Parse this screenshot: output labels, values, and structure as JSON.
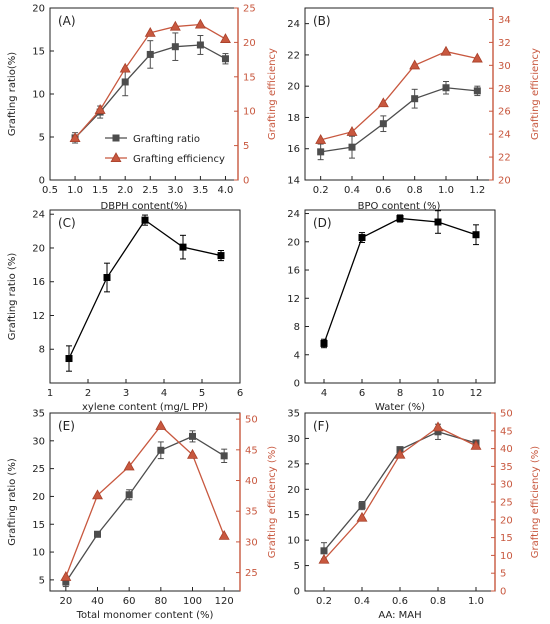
{
  "colors": {
    "axis": "#222222",
    "primary": "#4d4d4d",
    "secondary": "#c8583f",
    "black": "#000000"
  },
  "chart_data": [
    {
      "panel": "(A)",
      "type": "line",
      "xlabel": "DBPH content(%)",
      "ylabel": "Grafting ratio(%)",
      "ylabel_right": "Grafting efficiency",
      "xlim": [
        0.5,
        4.25
      ],
      "xticks": [
        0.5,
        1.0,
        1.5,
        2.0,
        2.5,
        3.0,
        3.5,
        4.0
      ],
      "xtick_labels": [
        "0.5",
        "1.0",
        "1.5",
        "2.0",
        "2.5",
        "3.0",
        "3.5",
        "4.0"
      ],
      "ylim": [
        0,
        20
      ],
      "yticks": [
        0,
        5,
        10,
        15,
        20
      ],
      "ylim_right": [
        0,
        25
      ],
      "yticks_right": [
        0,
        5,
        10,
        15,
        20,
        25
      ],
      "legend": "center-right",
      "series": [
        {
          "name": "Grafting ratio",
          "axis": "left",
          "marker": "square",
          "color": "#4d4d4d",
          "x": [
            1.0,
            1.5,
            2.0,
            2.5,
            3.0,
            3.5,
            4.0
          ],
          "y": [
            4.9,
            7.9,
            11.4,
            14.6,
            15.5,
            15.7,
            14.1
          ],
          "err": [
            0.6,
            0.7,
            1.6,
            1.6,
            1.6,
            1.1,
            0.6
          ]
        },
        {
          "name": "Grafting efficiency",
          "axis": "right",
          "marker": "triangle",
          "color": "#c8583f",
          "x": [
            1.0,
            1.5,
            2.0,
            2.5,
            3.0,
            3.5,
            4.0
          ],
          "y": [
            6.1,
            10.2,
            16.2,
            21.4,
            22.3,
            22.6,
            20.5
          ]
        }
      ]
    },
    {
      "panel": "(B)",
      "type": "line",
      "xlabel": "BPO content (%)",
      "ylabel": "",
      "ylabel_right": "Grafting efficiency",
      "xlim": [
        0.1,
        1.3
      ],
      "xticks": [
        0.2,
        0.4,
        0.6,
        0.8,
        1.0,
        1.2
      ],
      "xtick_labels": [
        "0.2",
        "0.4",
        "0.6",
        "0.8",
        "1.0",
        "1.2"
      ],
      "ylim": [
        14,
        25
      ],
      "yticks": [
        14,
        16,
        18,
        20,
        22,
        24
      ],
      "ylim_right": [
        20,
        35
      ],
      "yticks_right": [
        20,
        22,
        24,
        26,
        28,
        30,
        32,
        34
      ],
      "series": [
        {
          "name": "",
          "axis": "left",
          "marker": "square",
          "color": "#4d4d4d",
          "x": [
            0.2,
            0.4,
            0.6,
            0.8,
            1.0,
            1.2
          ],
          "y": [
            15.8,
            16.1,
            17.6,
            19.2,
            19.9,
            19.7
          ],
          "err": [
            0.5,
            0.7,
            0.5,
            0.6,
            0.4,
            0.3
          ]
        },
        {
          "name": "",
          "axis": "right",
          "marker": "triangle",
          "color": "#c8583f",
          "x": [
            0.2,
            0.4,
            0.6,
            0.8,
            1.0,
            1.2
          ],
          "y": [
            23.5,
            24.2,
            26.7,
            30.0,
            31.2,
            30.6
          ]
        }
      ]
    },
    {
      "panel": "(C)",
      "type": "line",
      "xlabel": "xylene content (mg/L PP)",
      "ylabel": "Grafting ratio (%)",
      "xlim": [
        1,
        6
      ],
      "xticks": [
        1,
        2,
        3,
        4,
        5,
        6
      ],
      "xtick_labels": [
        "1",
        "2",
        "3",
        "4",
        "5",
        "6"
      ],
      "ylim": [
        4,
        24.5
      ],
      "yticks": [
        8,
        12,
        16,
        20,
        24
      ],
      "series": [
        {
          "name": "",
          "axis": "left",
          "marker": "square",
          "color": "#000000",
          "x": [
            1.5,
            2.5,
            3.5,
            4.5,
            5.5
          ],
          "y": [
            6.9,
            16.5,
            23.3,
            20.1,
            19.1
          ],
          "err": [
            1.5,
            1.7,
            0.6,
            1.4,
            0.6
          ]
        }
      ]
    },
    {
      "panel": "(D)",
      "type": "line",
      "xlabel": "Water (%)",
      "ylabel": "",
      "xlim": [
        3,
        13
      ],
      "xticks": [
        4,
        6,
        8,
        10,
        12
      ],
      "xtick_labels": [
        "4",
        "6",
        "8",
        "10",
        "12"
      ],
      "ylim": [
        0,
        24.5
      ],
      "yticks": [
        0,
        4,
        8,
        12,
        16,
        20,
        24
      ],
      "series": [
        {
          "name": "",
          "axis": "left",
          "marker": "square",
          "color": "#000000",
          "x": [
            4,
            6,
            8,
            10,
            12
          ],
          "y": [
            5.6,
            20.6,
            23.3,
            22.8,
            21.0
          ],
          "err": [
            0.6,
            0.7,
            0.5,
            1.6,
            1.4
          ]
        }
      ]
    },
    {
      "panel": "(E)",
      "type": "line",
      "xlabel": "Total monomer content (%)",
      "ylabel": "Grafting ratio (%)",
      "ylabel_right": "Grafting efficiency (%)",
      "xlim": [
        10,
        130
      ],
      "xticks": [
        20,
        40,
        60,
        80,
        100,
        120
      ],
      "xtick_labels": [
        "20",
        "40",
        "60",
        "80",
        "100",
        "120"
      ],
      "ylim": [
        3,
        35
      ],
      "yticks": [
        5,
        10,
        15,
        20,
        25,
        30,
        35
      ],
      "ylim_right": [
        22,
        51
      ],
      "yticks_right": [
        25,
        30,
        35,
        40,
        45,
        50
      ],
      "series": [
        {
          "name": "",
          "axis": "left",
          "marker": "square",
          "color": "#4d4d4d",
          "x": [
            20,
            40,
            60,
            80,
            100,
            120
          ],
          "y": [
            4.6,
            13.2,
            20.3,
            28.3,
            30.8,
            27.3
          ],
          "err": [
            0.8,
            0.5,
            0.9,
            1.5,
            1.0,
            1.2
          ]
        },
        {
          "name": "",
          "axis": "right",
          "marker": "triangle",
          "color": "#c8583f",
          "x": [
            20,
            40,
            60,
            80,
            100,
            120
          ],
          "y": [
            24.3,
            37.6,
            42.3,
            48.9,
            44.2,
            31.0
          ]
        }
      ]
    },
    {
      "panel": "(F)",
      "type": "line",
      "xlabel": "AA: MAH",
      "ylabel": "",
      "ylabel_right": "Grafting efficiency (%)",
      "xlim": [
        0.1,
        1.1
      ],
      "xticks": [
        0.2,
        0.4,
        0.6,
        0.8,
        1.0
      ],
      "xtick_labels": [
        "0.2",
        "0.4",
        "0.6",
        "0.8",
        "1.0"
      ],
      "ylim": [
        0,
        35
      ],
      "yticks": [
        0,
        5,
        10,
        15,
        20,
        25,
        30,
        35
      ],
      "ylim_right": [
        0,
        50
      ],
      "yticks_right": [
        0,
        5,
        10,
        15,
        20,
        25,
        30,
        35,
        40,
        45,
        50
      ],
      "series": [
        {
          "name": "",
          "axis": "left",
          "marker": "square",
          "color": "#4d4d4d",
          "x": [
            0.2,
            0.4,
            0.6,
            0.8,
            1.0
          ],
          "y": [
            7.9,
            16.8,
            27.8,
            31.3,
            29.1
          ],
          "err": [
            1.6,
            0.8,
            0.4,
            1.5,
            0.6
          ]
        },
        {
          "name": "",
          "axis": "right",
          "marker": "triangle",
          "color": "#c8583f",
          "x": [
            0.2,
            0.4,
            0.6,
            0.8,
            1.0
          ],
          "y": [
            8.8,
            20.6,
            38.3,
            46.0,
            40.8
          ]
        }
      ]
    }
  ]
}
